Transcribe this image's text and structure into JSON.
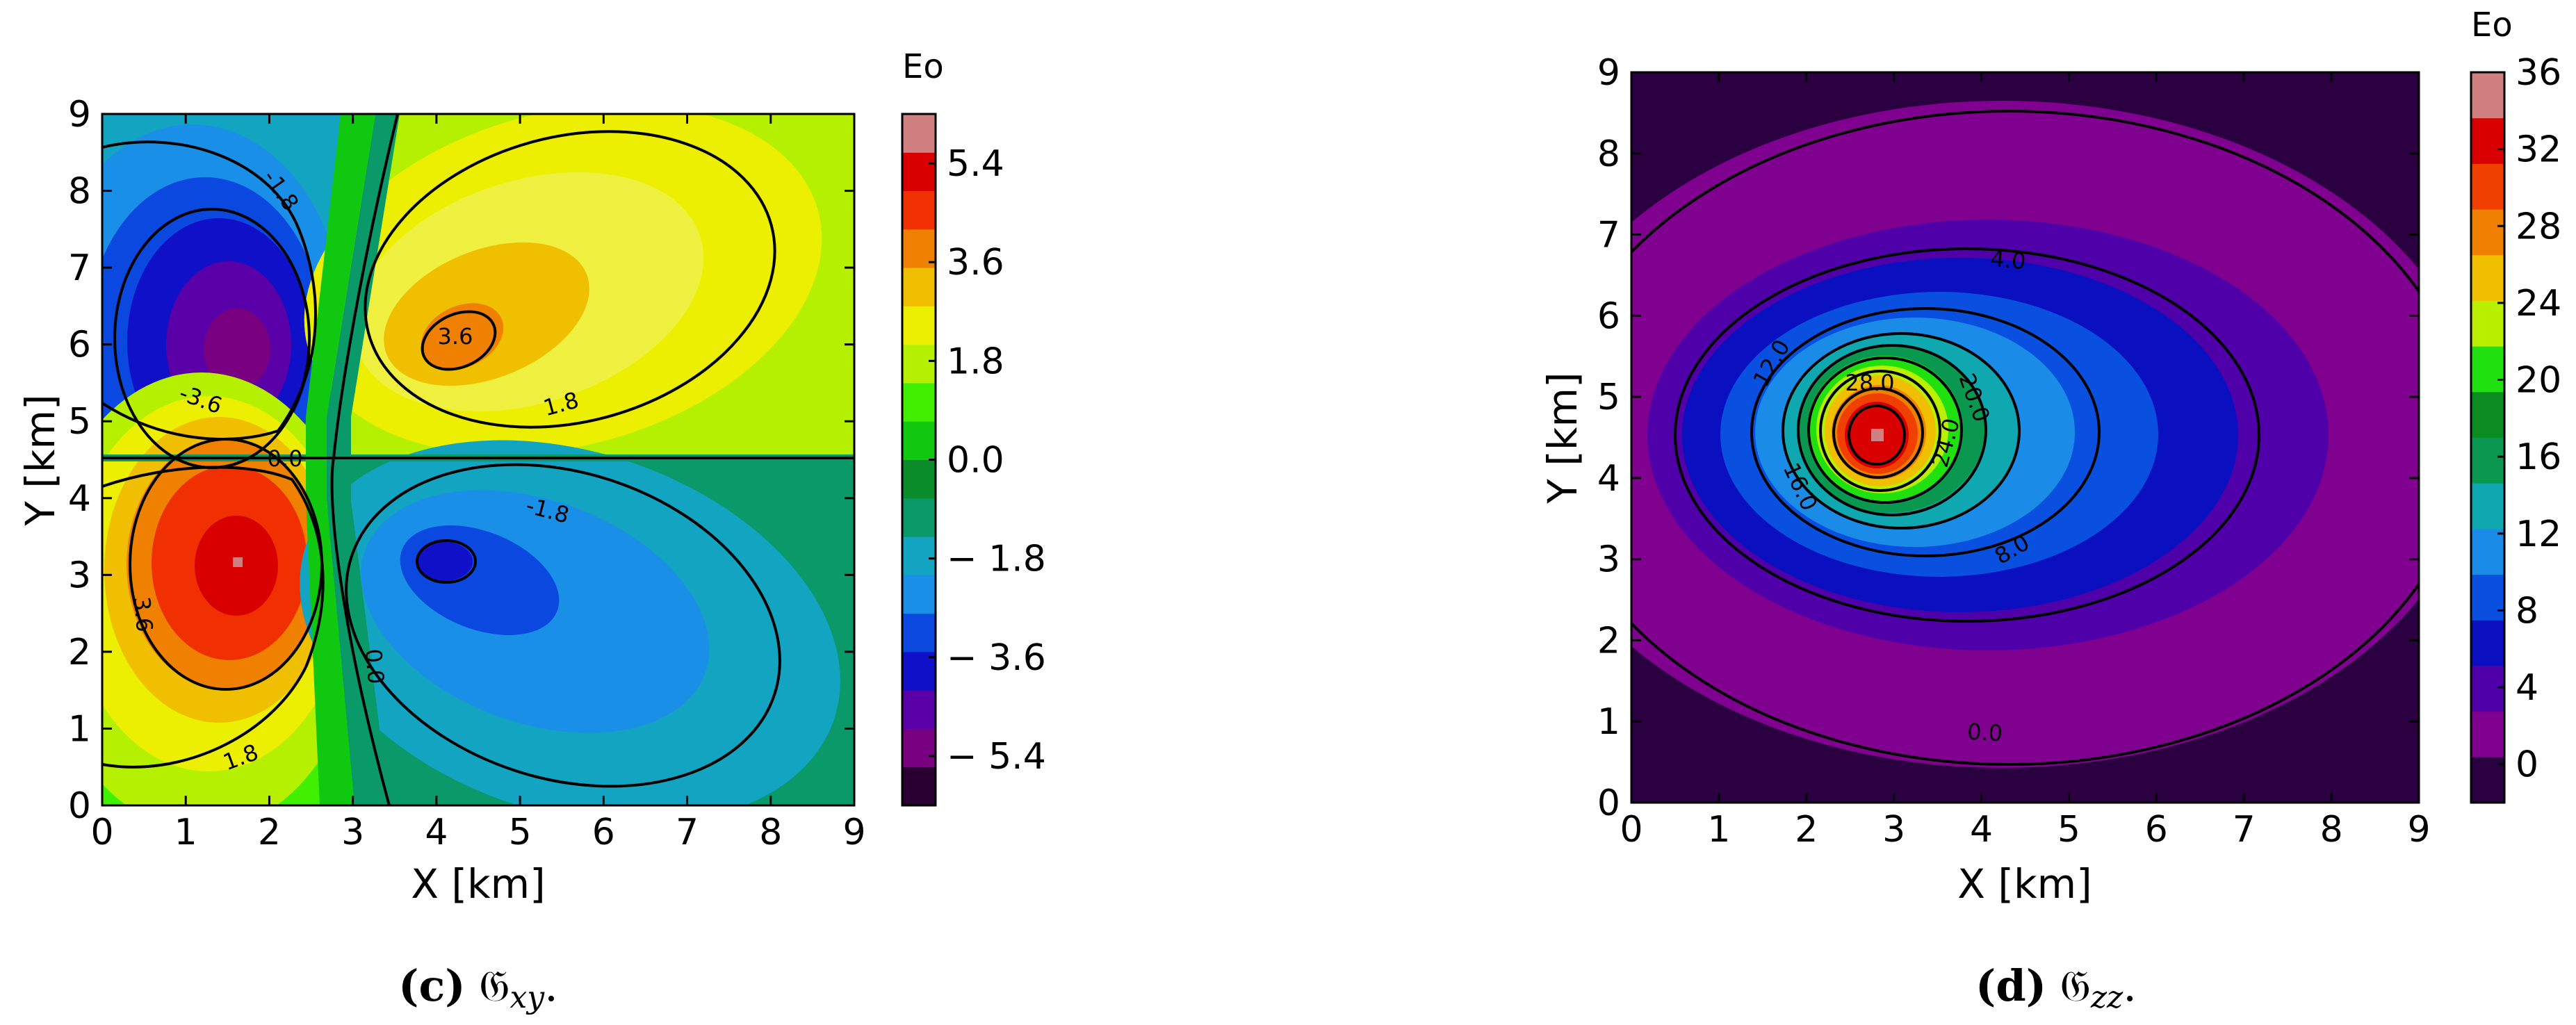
{
  "charts": [
    {
      "id": "c",
      "caption_letter": "c",
      "caption_symbol": "𝔊",
      "caption_subscript": "xy",
      "caption_end": ".",
      "xlabel": "X [km]",
      "ylabel": "Y [km]",
      "cbar_label": "Eo",
      "x_ticks": [
        "0",
        "1",
        "2",
        "3",
        "4",
        "5",
        "6",
        "7",
        "8",
        "9"
      ],
      "y_ticks": [
        "0",
        "1",
        "2",
        "3",
        "4",
        "5",
        "6",
        "7",
        "8",
        "9"
      ],
      "cbar_ticks": [
        "5.4",
        "3.6",
        "1.8",
        "0.0",
        "− 1.8",
        "− 3.6",
        "− 5.4"
      ],
      "contour_labels": [
        "-1.8",
        "-3.6",
        "3.6",
        "1.8",
        "0.0",
        "-1.8",
        "3.6",
        "1.8",
        "0.0"
      ]
    },
    {
      "id": "d",
      "caption_letter": "d",
      "caption_symbol": "𝔊",
      "caption_subscript": "zz",
      "caption_end": ".",
      "xlabel": "X [km]",
      "ylabel": "Y [km]",
      "cbar_label": "Eo",
      "x_ticks": [
        "0",
        "1",
        "2",
        "3",
        "4",
        "5",
        "6",
        "7",
        "8",
        "9"
      ],
      "y_ticks": [
        "0",
        "1",
        "2",
        "3",
        "4",
        "5",
        "6",
        "7",
        "8",
        "9"
      ],
      "cbar_ticks": [
        "36",
        "32",
        "28",
        "24",
        "20",
        "16",
        "12",
        "8",
        "4",
        "0"
      ],
      "contour_labels": [
        "4.0",
        "12.0",
        "28.0",
        "20.0",
        "24.0",
        "16.0",
        "8.0",
        "0.0"
      ]
    }
  ],
  "chart_data": [
    {
      "type": "heatmap",
      "subtype": "filled-contour",
      "xlabel": "X [km]",
      "ylabel": "Y [km]",
      "xlim": [
        0,
        9
      ],
      "ylim": [
        0,
        9
      ],
      "colorbar": {
        "label": "Eo",
        "range": [
          -6.3,
          6.3
        ],
        "step": 0.9,
        "ticks": [
          5.4,
          3.6,
          1.8,
          0.0,
          -1.8,
          -3.6,
          -5.4
        ]
      },
      "contour_levels": [
        -3.6,
        -1.8,
        0.0,
        1.8,
        3.6
      ],
      "extrema": [
        {
          "x": 1.6,
          "y": 5.9,
          "value": -6.0
        },
        {
          "x": 4.1,
          "y": 5.9,
          "value": 4.2
        },
        {
          "x": 1.6,
          "y": 3.1,
          "value": 6.0
        },
        {
          "x": 4.2,
          "y": 3.0,
          "value": -4.2
        }
      ],
      "palette": [
        "#2a0033",
        "#7a0082",
        "#5a00a8",
        "#1010c8",
        "#0a48e0",
        "#1a8fe8",
        "#12a4c0",
        "#0a9a6a",
        "#0a8c2a",
        "#10c810",
        "#40f000",
        "#b4f000",
        "#ecf000",
        "#f0c000",
        "#f08000",
        "#f03000",
        "#d80000",
        "#d08080"
      ]
    },
    {
      "type": "heatmap",
      "subtype": "filled-contour",
      "xlabel": "X [km]",
      "ylabel": "Y [km]",
      "xlim": [
        0,
        9
      ],
      "ylim": [
        0,
        9
      ],
      "colorbar": {
        "label": "Eo",
        "range": [
          -2,
          36
        ],
        "step": 2,
        "ticks": [
          36,
          32,
          28,
          24,
          20,
          16,
          12,
          8,
          4,
          0
        ]
      },
      "contour_levels": [
        0.0,
        4.0,
        8.0,
        12.0,
        16.0,
        20.0,
        24.0,
        28.0
      ],
      "extrema": [
        {
          "x": 2.85,
          "y": 4.5,
          "value": 36
        }
      ],
      "palette": [
        "#2a0040",
        "#800090",
        "#5000a8",
        "#0a10c0",
        "#0a50e0",
        "#1a8ce8",
        "#10a8b0",
        "#0a9850",
        "#0a8c20",
        "#20e010",
        "#b8f000",
        "#f0c000",
        "#f08000",
        "#f04000",
        "#d80000",
        "#d08080"
      ]
    }
  ]
}
